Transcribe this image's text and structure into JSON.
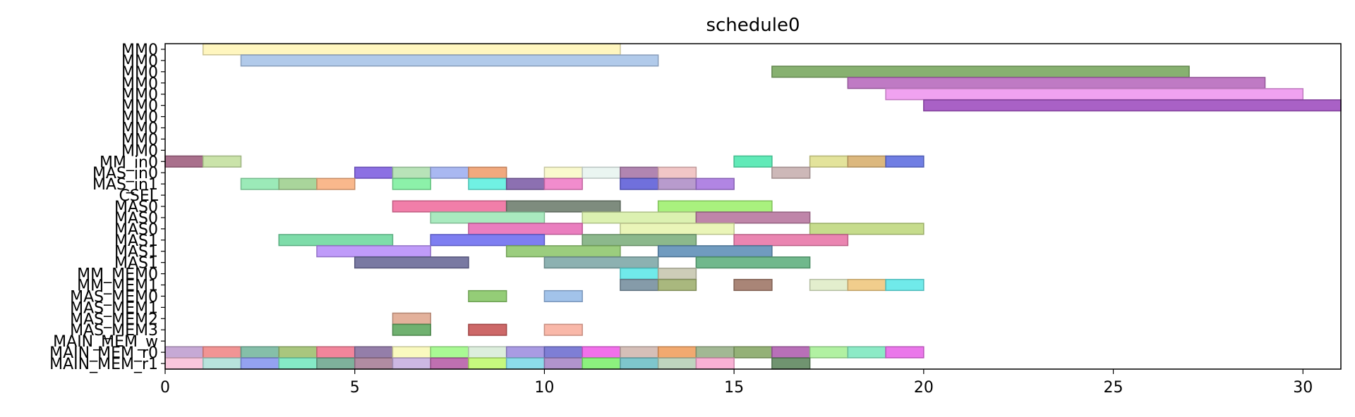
{
  "chart_data": {
    "type": "gantt",
    "title": "schedule0",
    "xlabel": "",
    "ylabel": "",
    "xlim": [
      0,
      31
    ],
    "xticks": [
      0,
      5,
      10,
      15,
      20,
      25,
      30
    ],
    "grid": false,
    "rows": [
      "MM0",
      "MM0",
      "MM0",
      "MM0",
      "MM0",
      "MM0",
      "MM0",
      "MM0",
      "MM0",
      "MM0",
      "MM_in0",
      "MAS_in0",
      "MAS_in1",
      "CSEL",
      "MAS0",
      "MAS0",
      "MAS0",
      "MAS1",
      "MAS1",
      "MAS1",
      "MM_MEM0",
      "MM_MEM1",
      "MAS_MEM0",
      "MAS_MEM1",
      "MAS_MEM2",
      "MAS_MEM3",
      "MAIN_MEM_w",
      "MAIN_MEM_r0",
      "MAIN_MEM_r1"
    ],
    "tasks": [
      {
        "row": 0,
        "start": 1,
        "end": 12,
        "color": "#fff5b8"
      },
      {
        "row": 1,
        "start": 2,
        "end": 13,
        "color": "#a9c4e8"
      },
      {
        "row": 2,
        "start": 16,
        "end": 27,
        "color": "#7aa860"
      },
      {
        "row": 3,
        "start": 18,
        "end": 29,
        "color": "#b86cbe"
      },
      {
        "row": 4,
        "start": 19,
        "end": 30,
        "color": "#ee98ee"
      },
      {
        "row": 5,
        "start": 20,
        "end": 31,
        "color": "#a050c0"
      },
      {
        "row": 10,
        "start": 0,
        "end": 1,
        "color": "#a06080"
      },
      {
        "row": 10,
        "start": 1,
        "end": 2,
        "color": "#c4e0a0"
      },
      {
        "row": 10,
        "start": 15,
        "end": 16,
        "color": "#50e8b0"
      },
      {
        "row": 10,
        "start": 17,
        "end": 18,
        "color": "#e0e090"
      },
      {
        "row": 10,
        "start": 18,
        "end": 19,
        "color": "#d8b070"
      },
      {
        "row": 10,
        "start": 19,
        "end": 20,
        "color": "#6070e0"
      },
      {
        "row": 11,
        "start": 5,
        "end": 6,
        "color": "#8060e0"
      },
      {
        "row": 11,
        "start": 6,
        "end": 7,
        "color": "#b0e0b0"
      },
      {
        "row": 11,
        "start": 7,
        "end": 8,
        "color": "#a0b0f0"
      },
      {
        "row": 11,
        "start": 8,
        "end": 9,
        "color": "#f0a070"
      },
      {
        "row": 11,
        "start": 10,
        "end": 11,
        "color": "#f8f8c8"
      },
      {
        "row": 11,
        "start": 11,
        "end": 12,
        "color": "#e8f4f0"
      },
      {
        "row": 11,
        "start": 12,
        "end": 13,
        "color": "#a878a8"
      },
      {
        "row": 11,
        "start": 13,
        "end": 14,
        "color": "#f0c0c0"
      },
      {
        "row": 11,
        "start": 16,
        "end": 17,
        "color": "#c8b0b0"
      },
      {
        "row": 12,
        "start": 2,
        "end": 3,
        "color": "#90e8b0"
      },
      {
        "row": 12,
        "start": 3,
        "end": 4,
        "color": "#a0d090"
      },
      {
        "row": 12,
        "start": 4,
        "end": 5,
        "color": "#f8b080"
      },
      {
        "row": 12,
        "start": 6,
        "end": 7,
        "color": "#80f0a0"
      },
      {
        "row": 12,
        "start": 8,
        "end": 9,
        "color": "#60f0e0"
      },
      {
        "row": 12,
        "start": 9,
        "end": 10,
        "color": "#8060a8"
      },
      {
        "row": 12,
        "start": 10,
        "end": 11,
        "color": "#f080c8"
      },
      {
        "row": 12,
        "start": 12,
        "end": 13,
        "color": "#6060d8"
      },
      {
        "row": 12,
        "start": 13,
        "end": 14,
        "color": "#b090c8"
      },
      {
        "row": 12,
        "start": 14,
        "end": 15,
        "color": "#a878e0"
      },
      {
        "row": 14,
        "start": 6,
        "end": 9,
        "color": "#f070a0"
      },
      {
        "row": 14,
        "start": 9,
        "end": 12,
        "color": "#708070"
      },
      {
        "row": 14,
        "start": 13,
        "end": 16,
        "color": "#a0f070"
      },
      {
        "row": 15,
        "start": 7,
        "end": 10,
        "color": "#a0e8b8"
      },
      {
        "row": 15,
        "start": 11,
        "end": 14,
        "color": "#d8f0a8"
      },
      {
        "row": 15,
        "start": 14,
        "end": 17,
        "color": "#b878a0"
      },
      {
        "row": 16,
        "start": 8,
        "end": 11,
        "color": "#e870b8"
      },
      {
        "row": 16,
        "start": 12,
        "end": 15,
        "color": "#e8f4b0"
      },
      {
        "row": 16,
        "start": 17,
        "end": 20,
        "color": "#c0d880"
      },
      {
        "row": 17,
        "start": 3,
        "end": 6,
        "color": "#70d8a0"
      },
      {
        "row": 17,
        "start": 7,
        "end": 10,
        "color": "#7070f0"
      },
      {
        "row": 17,
        "start": 11,
        "end": 14,
        "color": "#80b080"
      },
      {
        "row": 17,
        "start": 15,
        "end": 18,
        "color": "#e878a8"
      },
      {
        "row": 18,
        "start": 4,
        "end": 7,
        "color": "#b890f8"
      },
      {
        "row": 18,
        "start": 9,
        "end": 12,
        "color": "#90c870"
      },
      {
        "row": 18,
        "start": 13,
        "end": 16,
        "color": "#6090b8"
      },
      {
        "row": 19,
        "start": 5,
        "end": 8,
        "color": "#6a6a98"
      },
      {
        "row": 19,
        "start": 10,
        "end": 13,
        "color": "#80a8a8"
      },
      {
        "row": 19,
        "start": 14,
        "end": 17,
        "color": "#60b080"
      },
      {
        "row": 20,
        "start": 12,
        "end": 13,
        "color": "#60e8e8"
      },
      {
        "row": 20,
        "start": 13,
        "end": 14,
        "color": "#c8c8b0"
      },
      {
        "row": 21,
        "start": 12,
        "end": 13,
        "color": "#7890a0"
      },
      {
        "row": 21,
        "start": 13,
        "end": 14,
        "color": "#a0b070"
      },
      {
        "row": 21,
        "start": 15,
        "end": 16,
        "color": "#a07868"
      },
      {
        "row": 21,
        "start": 17,
        "end": 18,
        "color": "#e0ecc8"
      },
      {
        "row": 21,
        "start": 18,
        "end": 19,
        "color": "#f0c880"
      },
      {
        "row": 21,
        "start": 19,
        "end": 20,
        "color": "#60e8e8"
      },
      {
        "row": 22,
        "start": 8,
        "end": 9,
        "color": "#88c868"
      },
      {
        "row": 22,
        "start": 10,
        "end": 11,
        "color": "#98bce8"
      },
      {
        "row": 24,
        "start": 6,
        "end": 7,
        "color": "#e0a890"
      },
      {
        "row": 25,
        "start": 6,
        "end": 7,
        "color": "#60a860"
      },
      {
        "row": 25,
        "start": 8,
        "end": 9,
        "color": "#c85858"
      },
      {
        "row": 25,
        "start": 10,
        "end": 11,
        "color": "#f8b0a0"
      },
      {
        "row": 27,
        "start": 0,
        "end": 1,
        "color": "#c0a0d0"
      },
      {
        "row": 27,
        "start": 1,
        "end": 2,
        "color": "#f08888"
      },
      {
        "row": 27,
        "start": 2,
        "end": 3,
        "color": "#78b8a0"
      },
      {
        "row": 27,
        "start": 3,
        "end": 4,
        "color": "#a0c070"
      },
      {
        "row": 27,
        "start": 4,
        "end": 5,
        "color": "#f07890"
      },
      {
        "row": 27,
        "start": 5,
        "end": 6,
        "color": "#8870a0"
      },
      {
        "row": 27,
        "start": 6,
        "end": 7,
        "color": "#f8f8b8"
      },
      {
        "row": 27,
        "start": 7,
        "end": 8,
        "color": "#a0f888"
      },
      {
        "row": 27,
        "start": 8,
        "end": 9,
        "color": "#d8ecd8"
      },
      {
        "row": 27,
        "start": 9,
        "end": 10,
        "color": "#a090e0"
      },
      {
        "row": 27,
        "start": 10,
        "end": 11,
        "color": "#7070d0"
      },
      {
        "row": 27,
        "start": 11,
        "end": 12,
        "color": "#f060e8"
      },
      {
        "row": 27,
        "start": 12,
        "end": 13,
        "color": "#d0b8b0"
      },
      {
        "row": 27,
        "start": 13,
        "end": 14,
        "color": "#f0a060"
      },
      {
        "row": 27,
        "start": 14,
        "end": 15,
        "color": "#98b088"
      },
      {
        "row": 27,
        "start": 15,
        "end": 16,
        "color": "#88a868"
      },
      {
        "row": 27,
        "start": 16,
        "end": 17,
        "color": "#b060b0"
      },
      {
        "row": 27,
        "start": 17,
        "end": 18,
        "color": "#a8f098"
      },
      {
        "row": 27,
        "start": 18,
        "end": 19,
        "color": "#80e8c0"
      },
      {
        "row": 27,
        "start": 19,
        "end": 20,
        "color": "#e868e8"
      },
      {
        "row": 28,
        "start": 0,
        "end": 1,
        "color": "#f8c0d8"
      },
      {
        "row": 28,
        "start": 1,
        "end": 2,
        "color": "#b0e0d8"
      },
      {
        "row": 28,
        "start": 2,
        "end": 3,
        "color": "#8898f0"
      },
      {
        "row": 28,
        "start": 3,
        "end": 4,
        "color": "#78e8c0"
      },
      {
        "row": 28,
        "start": 4,
        "end": 5,
        "color": "#70a890"
      },
      {
        "row": 28,
        "start": 5,
        "end": 6,
        "color": "#a88098"
      },
      {
        "row": 28,
        "start": 6,
        "end": 7,
        "color": "#c8b0e0"
      },
      {
        "row": 28,
        "start": 7,
        "end": 8,
        "color": "#b860a8"
      },
      {
        "row": 28,
        "start": 8,
        "end": 9,
        "color": "#c0f870"
      },
      {
        "row": 28,
        "start": 9,
        "end": 10,
        "color": "#80d8e8"
      },
      {
        "row": 28,
        "start": 10,
        "end": 11,
        "color": "#a888c8"
      },
      {
        "row": 28,
        "start": 11,
        "end": 12,
        "color": "#80f070"
      },
      {
        "row": 28,
        "start": 12,
        "end": 13,
        "color": "#70c0c8"
      },
      {
        "row": 28,
        "start": 13,
        "end": 14,
        "color": "#b8d0b8"
      },
      {
        "row": 28,
        "start": 14,
        "end": 15,
        "color": "#f8a8d0"
      },
      {
        "row": 28,
        "start": 16,
        "end": 17,
        "color": "#608860"
      }
    ]
  }
}
